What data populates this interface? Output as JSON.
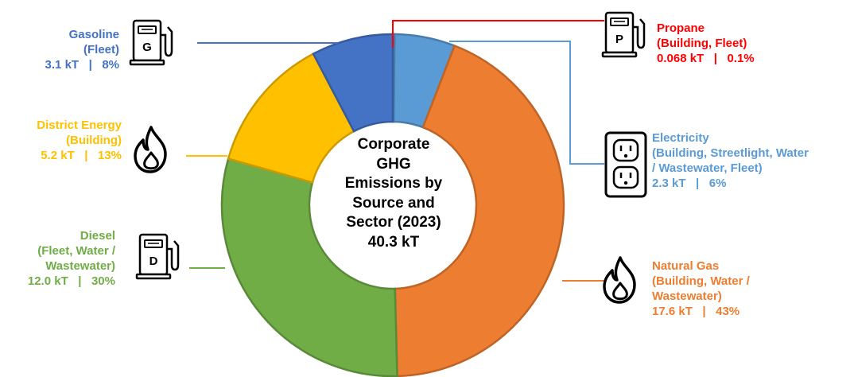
{
  "chart_data": {
    "type": "pie",
    "style": "donut",
    "center_text": [
      "Corporate",
      "GHG",
      "Emissions by",
      "Source and",
      "Sector (2023)",
      "40.3 kT"
    ],
    "slices": [
      {
        "name": "Propane",
        "sector": "(Building, Fleet)",
        "value_kt": 0.068,
        "value_label": "0.068 kT",
        "percent": 0.1,
        "percent_label": "0.1%",
        "color": "#ff0000",
        "icon": "fuel-pump-icon",
        "icon_letter": "P"
      },
      {
        "name": "Electricity",
        "sector_lines": [
          "(Building, Streetlight, Water",
          "/ Wastewater, Fleet)"
        ],
        "value_kt": 2.3,
        "value_label": "2.3 kT",
        "percent": 6,
        "percent_label": "6%",
        "color": "#5b9bd5",
        "icon": "electrical-outlet-icon"
      },
      {
        "name": "Natural Gas",
        "sector_lines": [
          "(Building, Water /",
          "Wastewater)"
        ],
        "value_kt": 17.6,
        "value_label": "17.6 kT",
        "percent": 43,
        "percent_label": "43%",
        "color": "#ed7d31",
        "icon": "flame-icon"
      },
      {
        "name": "Diesel",
        "sector_lines": [
          "(Fleet, Water /",
          "Wastewater)"
        ],
        "value_kt": 12.0,
        "value_label": "12.0 kT",
        "percent": 30,
        "percent_label": "30%",
        "color": "#70ad47",
        "icon": "fuel-pump-icon",
        "icon_letter": "D"
      },
      {
        "name": "District Energy",
        "sector": "(Building)",
        "value_kt": 5.2,
        "value_label": "5.2 kT",
        "percent": 13,
        "percent_label": "13%",
        "color": "#ffc000",
        "icon": "flame-icon"
      },
      {
        "name": "Gasoline",
        "sector": "(Fleet)",
        "value_kt": 3.1,
        "value_label": "3.1 kT",
        "percent": 8,
        "percent_label": "8%",
        "color": "#4472c4",
        "icon": "fuel-pump-icon",
        "icon_letter": "G"
      }
    ],
    "separator": "|"
  }
}
